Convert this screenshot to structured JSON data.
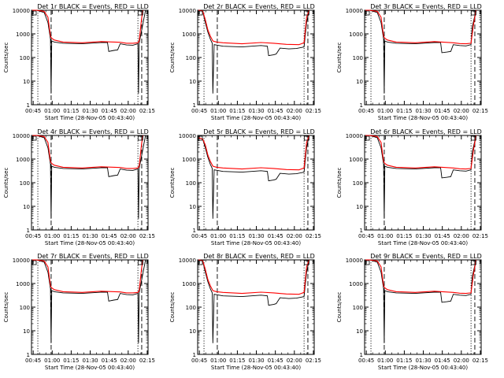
{
  "colors": {
    "events": "#000000",
    "lld": "#ff0000",
    "axes": "#000000"
  },
  "chart_data": [
    {
      "type": "line",
      "title": "Det 1r BLACK = Events, RED = LLD",
      "xlabel": "Start Time (28-Nov-05 00:43:40)",
      "ylabel": "Counts/sec",
      "yscale": "log",
      "ylim": [
        1,
        10000
      ],
      "xticks": [
        "00:45",
        "01:00",
        "01:15",
        "01:30",
        "01:45",
        "02:00",
        "02:15"
      ],
      "yticks": [
        "1",
        "10",
        "100",
        "1000",
        "10000"
      ],
      "series": [
        {
          "name": "Events",
          "x": [
            0.7,
            4,
            10,
            13,
            15,
            15.5,
            16,
            18,
            25,
            40,
            55,
            60,
            61,
            65,
            68,
            70,
            75,
            80,
            84,
            84.5,
            85,
            90
          ],
          "y": [
            10000,
            10000,
            8000,
            3000,
            600,
            3,
            500,
            450,
            400,
            380,
            430,
            430,
            180,
            200,
            210,
            380,
            340,
            330,
            380,
            3,
            400,
            10000
          ]
        },
        {
          "name": "LLD",
          "x": [
            0.7,
            4,
            10,
            13,
            15,
            16,
            18,
            25,
            40,
            55,
            70,
            75,
            80,
            84,
            85,
            87,
            88
          ],
          "y": [
            10000,
            10000,
            9000,
            5000,
            800,
            650,
            550,
            450,
            420,
            470,
            440,
            400,
            400,
            420,
            500,
            5000,
            10000
          ]
        }
      ]
    },
    {
      "type": "line",
      "title": "Det 2r BLACK = Events, RED = LLD",
      "xlabel": "Start Time (28-Nov-05 00:43:40)",
      "ylabel": "Counts/sec",
      "yscale": "log",
      "ylim": [
        1,
        10000
      ],
      "xticks": [
        "00:45",
        "01:00",
        "01:15",
        "01:30",
        "01:45",
        "02:00",
        "02:15"
      ],
      "yticks": [
        "1",
        "10",
        "100",
        "1000",
        "10000"
      ],
      "series": [
        {
          "name": "Events",
          "x": [
            0.7,
            4,
            6,
            8,
            10,
            11.5,
            12,
            13,
            20,
            35,
            50,
            55,
            56,
            60,
            62,
            65,
            72,
            78,
            84,
            86,
            88
          ],
          "y": [
            10000,
            9000,
            3000,
            1200,
            600,
            400,
            3,
            350,
            300,
            280,
            320,
            300,
            120,
            130,
            140,
            250,
            230,
            240,
            280,
            3000,
            10000
          ]
        },
        {
          "name": "LLD",
          "x": [
            0.7,
            4,
            6,
            8,
            10,
            12,
            15,
            20,
            35,
            50,
            60,
            70,
            80,
            84,
            86,
            88
          ],
          "y": [
            10000,
            9500,
            4000,
            1500,
            800,
            500,
            450,
            420,
            380,
            430,
            400,
            360,
            350,
            420,
            5000,
            10000
          ]
        }
      ]
    },
    {
      "type": "line",
      "title": "Det 3r BLACK = Events, RED = LLD",
      "xlabel": "Start Time (28-Nov-05 00:43:40)",
      "ylabel": "Counts/sec",
      "yscale": "log",
      "ylim": [
        1,
        10000
      ],
      "xticks": [
        "00:45",
        "01:00",
        "01:15",
        "01:30",
        "01:45",
        "02:00",
        "02:15"
      ],
      "yticks": [
        "1",
        "10",
        "100",
        "1000",
        "10000"
      ],
      "series": [
        {
          "name": "Events",
          "x": [
            0.7,
            4,
            10,
            13,
            15,
            15.5,
            16,
            18,
            25,
            40,
            55,
            60,
            61,
            65,
            68,
            70,
            75,
            80,
            84,
            85,
            88
          ],
          "y": [
            10000,
            10000,
            8000,
            3000,
            600,
            3,
            500,
            450,
            400,
            380,
            430,
            430,
            160,
            170,
            180,
            350,
            320,
            310,
            350,
            2000,
            10000
          ]
        },
        {
          "name": "LLD",
          "x": [
            0.7,
            4,
            10,
            13,
            15,
            16,
            18,
            25,
            40,
            55,
            70,
            75,
            80,
            84,
            86,
            88
          ],
          "y": [
            10000,
            10000,
            9000,
            5000,
            800,
            650,
            550,
            450,
            420,
            470,
            420,
            390,
            380,
            400,
            2500,
            10000
          ]
        }
      ]
    },
    {
      "type": "line",
      "title": "Det 4r BLACK = Events, RED = LLD",
      "xlabel": "Start Time (28-Nov-05 00:43:40)",
      "ylabel": "Counts/sec",
      "yscale": "log",
      "ylim": [
        1,
        10000
      ],
      "xticks": [
        "00:45",
        "01:00",
        "01:15",
        "01:30",
        "01:45",
        "02:00",
        "02:15"
      ],
      "yticks": [
        "1",
        "10",
        "100",
        "1000",
        "10000"
      ],
      "series": [
        {
          "name": "Events",
          "x": [
            0.7,
            4,
            10,
            13,
            15,
            15.5,
            16,
            18,
            25,
            40,
            55,
            60,
            61,
            65,
            68,
            70,
            75,
            80,
            84,
            84.5,
            85,
            90
          ],
          "y": [
            10000,
            10000,
            8000,
            3000,
            600,
            3,
            500,
            450,
            400,
            380,
            430,
            430,
            180,
            200,
            210,
            380,
            340,
            330,
            380,
            3,
            400,
            10000
          ]
        },
        {
          "name": "LLD",
          "x": [
            0.7,
            4,
            10,
            13,
            15,
            16,
            18,
            25,
            40,
            55,
            70,
            75,
            80,
            84,
            85,
            87,
            88
          ],
          "y": [
            10000,
            10000,
            9000,
            5000,
            800,
            650,
            550,
            450,
            420,
            470,
            440,
            400,
            400,
            420,
            500,
            5000,
            10000
          ]
        }
      ]
    },
    {
      "type": "line",
      "title": "Det 5r BLACK = Events, RED = LLD",
      "xlabel": "Start Time (28-Nov-05 00:43:40)",
      "ylabel": "Counts/sec",
      "yscale": "log",
      "ylim": [
        1,
        10000
      ],
      "xticks": [
        "00:45",
        "01:00",
        "01:15",
        "01:30",
        "01:45",
        "02:00",
        "02:15"
      ],
      "yticks": [
        "1",
        "10",
        "100",
        "1000",
        "10000"
      ],
      "series": [
        {
          "name": "Events",
          "x": [
            0.7,
            4,
            6,
            8,
            10,
            11.5,
            12,
            13,
            20,
            35,
            50,
            55,
            56,
            60,
            62,
            65,
            72,
            78,
            84,
            86,
            88
          ],
          "y": [
            8000,
            7000,
            3000,
            1200,
            600,
            400,
            3,
            350,
            300,
            280,
            320,
            300,
            120,
            130,
            140,
            250,
            230,
            240,
            280,
            3000,
            10000
          ]
        },
        {
          "name": "LLD",
          "x": [
            0.7,
            4,
            6,
            8,
            10,
            12,
            15,
            20,
            35,
            50,
            60,
            70,
            80,
            84,
            86,
            88
          ],
          "y": [
            8000,
            7000,
            4000,
            1500,
            800,
            500,
            450,
            420,
            380,
            430,
            400,
            360,
            350,
            420,
            5000,
            10000
          ]
        }
      ]
    },
    {
      "type": "line",
      "title": "Det 6r BLACK = Events, RED = LLD",
      "xlabel": "Start Time (28-Nov-05 00:43:40)",
      "ylabel": "Counts/sec",
      "yscale": "log",
      "ylim": [
        1,
        10000
      ],
      "xticks": [
        "00:45",
        "01:00",
        "01:15",
        "01:30",
        "01:45",
        "02:00",
        "02:15"
      ],
      "yticks": [
        "1",
        "10",
        "100",
        "1000",
        "10000"
      ],
      "series": [
        {
          "name": "Events",
          "x": [
            0.7,
            4,
            10,
            13,
            15,
            15.5,
            16,
            18,
            25,
            40,
            55,
            60,
            61,
            65,
            68,
            70,
            75,
            80,
            84,
            85,
            88
          ],
          "y": [
            10000,
            10000,
            8000,
            3000,
            600,
            3,
            500,
            450,
            400,
            380,
            430,
            430,
            160,
            170,
            180,
            350,
            320,
            310,
            350,
            2000,
            10000
          ]
        },
        {
          "name": "LLD",
          "x": [
            0.7,
            4,
            10,
            13,
            15,
            16,
            18,
            25,
            40,
            55,
            70,
            75,
            80,
            84,
            86,
            88
          ],
          "y": [
            10000,
            10000,
            9000,
            5000,
            800,
            650,
            550,
            450,
            420,
            470,
            420,
            390,
            380,
            400,
            2500,
            10000
          ]
        }
      ]
    },
    {
      "type": "line",
      "title": "Det 7r BLACK = Events, RED = LLD",
      "xlabel": "Start Time (28-Nov-05 00:43:40)",
      "ylabel": "Counts/sec",
      "yscale": "log",
      "ylim": [
        1,
        10000
      ],
      "xticks": [
        "00:45",
        "01:00",
        "01:15",
        "01:30",
        "01:45",
        "02:00",
        "02:15"
      ],
      "yticks": [
        "1",
        "10",
        "100",
        "1000",
        "10000"
      ],
      "series": [
        {
          "name": "Events",
          "x": [
            0.7,
            4,
            10,
            13,
            15,
            15.5,
            16,
            18,
            25,
            40,
            55,
            60,
            61,
            65,
            68,
            70,
            75,
            80,
            84,
            84.5,
            85,
            90
          ],
          "y": [
            10000,
            10000,
            8000,
            3000,
            600,
            3,
            500,
            450,
            400,
            380,
            430,
            430,
            180,
            200,
            210,
            380,
            340,
            330,
            380,
            3,
            400,
            10000
          ]
        },
        {
          "name": "LLD",
          "x": [
            0.7,
            4,
            10,
            13,
            15,
            16,
            18,
            25,
            40,
            55,
            70,
            75,
            80,
            84,
            85,
            87,
            88
          ],
          "y": [
            10000,
            10000,
            9000,
            5000,
            800,
            650,
            550,
            450,
            420,
            470,
            440,
            400,
            400,
            420,
            500,
            5000,
            10000
          ]
        }
      ]
    },
    {
      "type": "line",
      "title": "Det 8r BLACK = Events, RED = LLD",
      "xlabel": "Start Time (28-Nov-05 00:43:40)",
      "ylabel": "Counts/sec",
      "yscale": "log",
      "ylim": [
        1,
        10000
      ],
      "xticks": [
        "00:45",
        "01:00",
        "01:15",
        "01:30",
        "01:45",
        "02:00",
        "02:15"
      ],
      "yticks": [
        "1",
        "10",
        "100",
        "1000",
        "10000"
      ],
      "series": [
        {
          "name": "Events",
          "x": [
            0.7,
            4,
            6,
            8,
            10,
            11.5,
            12,
            13,
            20,
            35,
            50,
            55,
            56,
            60,
            62,
            65,
            72,
            78,
            84,
            86,
            88
          ],
          "y": [
            10000,
            9000,
            3000,
            1200,
            600,
            400,
            3,
            350,
            300,
            280,
            320,
            300,
            120,
            130,
            140,
            250,
            230,
            240,
            280,
            3000,
            10000
          ]
        },
        {
          "name": "LLD",
          "x": [
            0.7,
            4,
            6,
            8,
            10,
            12,
            15,
            20,
            35,
            50,
            60,
            70,
            80,
            84,
            86,
            88
          ],
          "y": [
            10000,
            9500,
            4000,
            1500,
            800,
            500,
            450,
            420,
            380,
            430,
            400,
            360,
            350,
            420,
            5000,
            10000
          ]
        }
      ]
    },
    {
      "type": "line",
      "title": "Det 9r BLACK = Events, RED = LLD",
      "xlabel": "Start Time (28-Nov-05 00:43:40)",
      "ylabel": "Counts/sec",
      "yscale": "log",
      "ylim": [
        1,
        10000
      ],
      "xticks": [
        "00:45",
        "01:00",
        "01:15",
        "01:30",
        "01:45",
        "02:00",
        "02:15"
      ],
      "yticks": [
        "1",
        "10",
        "100",
        "1000",
        "10000"
      ],
      "series": [
        {
          "name": "Events",
          "x": [
            0.7,
            4,
            10,
            13,
            15,
            15.5,
            16,
            18,
            25,
            40,
            55,
            60,
            61,
            65,
            68,
            70,
            75,
            80,
            84,
            85,
            88
          ],
          "y": [
            10000,
            10000,
            8000,
            3000,
            600,
            3,
            500,
            450,
            400,
            380,
            430,
            430,
            160,
            170,
            180,
            350,
            320,
            310,
            350,
            2000,
            10000
          ]
        },
        {
          "name": "LLD",
          "x": [
            0.7,
            4,
            10,
            13,
            15,
            16,
            18,
            25,
            40,
            55,
            70,
            75,
            80,
            84,
            86,
            88
          ],
          "y": [
            10000,
            10000,
            9000,
            5000,
            800,
            650,
            550,
            450,
            420,
            470,
            420,
            390,
            380,
            400,
            2500,
            10000
          ]
        }
      ]
    }
  ]
}
